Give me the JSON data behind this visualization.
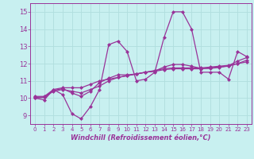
{
  "title": "",
  "xlabel": "Windchill (Refroidissement éolien,°C)",
  "ylabel": "",
  "bg_color": "#c8f0f0",
  "grid_color": "#b0dede",
  "line_color": "#993399",
  "xlim": [
    -0.5,
    23.5
  ],
  "ylim": [
    8.5,
    15.5
  ],
  "yticks": [
    9,
    10,
    11,
    12,
    13,
    14,
    15
  ],
  "xticks": [
    0,
    1,
    2,
    3,
    4,
    5,
    6,
    7,
    8,
    9,
    10,
    11,
    12,
    13,
    14,
    15,
    16,
    17,
    18,
    19,
    20,
    21,
    22,
    23
  ],
  "series1": [
    10.0,
    9.9,
    10.5,
    10.2,
    9.1,
    8.8,
    9.5,
    10.5,
    13.1,
    13.3,
    12.7,
    11.0,
    11.1,
    11.5,
    13.5,
    15.0,
    15.0,
    14.0,
    11.5,
    11.5,
    11.5,
    11.1,
    12.7,
    12.4
  ],
  "series2": [
    10.1,
    10.1,
    10.5,
    10.6,
    10.6,
    10.6,
    10.8,
    11.0,
    11.1,
    11.2,
    11.3,
    11.4,
    11.5,
    11.6,
    11.7,
    11.75,
    11.75,
    11.75,
    11.75,
    11.8,
    11.85,
    11.9,
    12.0,
    12.1
  ],
  "series3": [
    10.0,
    10.05,
    10.4,
    10.5,
    10.4,
    10.3,
    10.5,
    10.7,
    11.0,
    11.2,
    11.3,
    11.4,
    11.5,
    11.55,
    11.65,
    11.7,
    11.7,
    11.7,
    11.7,
    11.75,
    11.8,
    11.85,
    12.0,
    12.2
  ],
  "series4": [
    10.05,
    10.05,
    10.45,
    10.55,
    10.3,
    10.1,
    10.4,
    10.9,
    11.15,
    11.35,
    11.35,
    11.4,
    11.5,
    11.57,
    11.8,
    11.95,
    11.95,
    11.85,
    11.72,
    11.72,
    11.78,
    11.88,
    12.15,
    12.35
  ]
}
